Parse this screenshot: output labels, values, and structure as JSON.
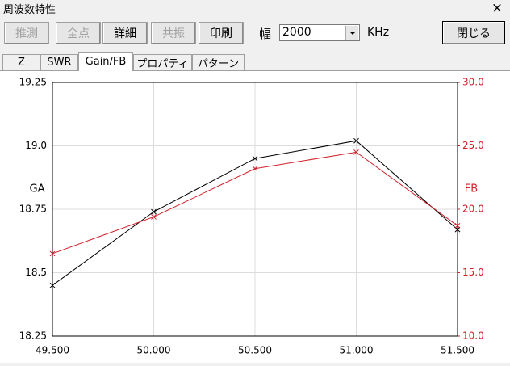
{
  "window": {
    "title": "周波数特性",
    "close": "×"
  },
  "toolbar": {
    "buttons": [
      {
        "label": "推測",
        "enabled": false
      },
      {
        "label": "全点",
        "enabled": false
      },
      {
        "label": "詳細",
        "enabled": true
      },
      {
        "label": "共振",
        "enabled": false
      },
      {
        "label": "印刷",
        "enabled": true
      }
    ],
    "width_label": "幅",
    "width_value": "2000",
    "unit": "KHz",
    "close_button": "閉じる"
  },
  "tabs": [
    "Z",
    "SWR",
    "Gain/FB",
    "プロパティ",
    "パターン"
  ],
  "active_tab": 2,
  "chart_data": {
    "type": "line",
    "ylabel": "GA",
    "y2label": "FB",
    "grid": true,
    "marker": "x",
    "x": [
      49.5,
      50,
      50.5,
      51,
      51.5
    ],
    "xlim": [
      49.5,
      51.5
    ],
    "xticks": [
      {
        "value": 49.5,
        "label": "49.500"
      },
      {
        "value": 50,
        "label": "50.000"
      },
      {
        "value": 50.5,
        "label": "50.500"
      },
      {
        "value": 51,
        "label": "51.000"
      },
      {
        "value": 51.5,
        "label": "51.500"
      }
    ],
    "ylim": [
      18.25,
      19.25
    ],
    "yticks": [
      18.25,
      18.5,
      18.75,
      {
        "value": 19,
        "label": "19.0"
      },
      19.25
    ],
    "y2lim": [
      10,
      30
    ],
    "y2ticks": [
      {
        "value": 10,
        "label": "10.0"
      },
      {
        "value": 15,
        "label": "15.0"
      },
      {
        "value": 20,
        "label": "20.0"
      },
      {
        "value": 25,
        "label": "25.0"
      },
      {
        "value": 30,
        "label": "30.0"
      }
    ],
    "y2color": "#d0202a",
    "series": [
      {
        "name": "GA",
        "color": "#000000",
        "values": [
          18.45,
          18.74,
          18.95,
          19.02,
          18.67
        ]
      },
      {
        "name": "FB",
        "color": "#d0202a",
        "axis": "y2",
        "values": [
          16.5,
          19.4,
          23.2,
          24.5,
          18.7
        ]
      }
    ]
  }
}
